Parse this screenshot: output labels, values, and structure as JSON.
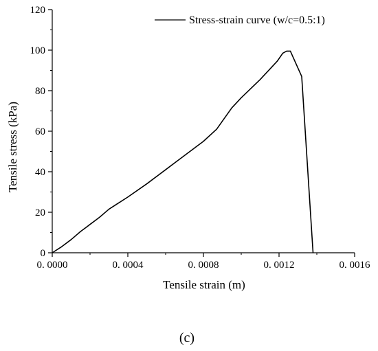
{
  "chart_data": {
    "type": "line",
    "xlabel": "Tensile strain (m)",
    "ylabel": "Tensile stress (kPa)",
    "xlim": [
      0,
      0.0016
    ],
    "ylim": [
      0,
      120
    ],
    "x_ticks": [
      "0. 0000",
      "0. 0004",
      "0. 0008",
      "0. 0012",
      "0. 0016"
    ],
    "y_ticks": [
      "0",
      "20",
      "40",
      "60",
      "80",
      "100",
      "120"
    ],
    "grid": false,
    "legend_position": "top-right",
    "series": [
      {
        "name": "Stress-strain curve (w/c=0.5:1)",
        "color": "#000000",
        "points": [
          [
            0.0,
            0.0
          ],
          [
            5e-05,
            3.0
          ],
          [
            0.0001,
            6.5
          ],
          [
            0.00015,
            10.5
          ],
          [
            0.0002,
            14.0
          ],
          [
            0.00025,
            17.5
          ],
          [
            0.0003,
            21.5
          ],
          [
            0.00035,
            24.5
          ],
          [
            0.0004,
            27.5
          ],
          [
            0.0005,
            34.0
          ],
          [
            0.0006,
            41.0
          ],
          [
            0.0007,
            48.0
          ],
          [
            0.0008,
            55.0
          ],
          [
            0.00087,
            61.0
          ],
          [
            0.00095,
            71.5
          ],
          [
            0.001,
            76.5
          ],
          [
            0.00105,
            81.0
          ],
          [
            0.0011,
            85.5
          ],
          [
            0.00115,
            90.5
          ],
          [
            0.00119,
            94.5
          ],
          [
            0.00122,
            98.5
          ],
          [
            0.00124,
            99.5
          ],
          [
            0.00126,
            99.5
          ],
          [
            0.00132,
            87.0
          ],
          [
            0.00138,
            0.0
          ]
        ]
      }
    ]
  },
  "panel_label": "(c)"
}
